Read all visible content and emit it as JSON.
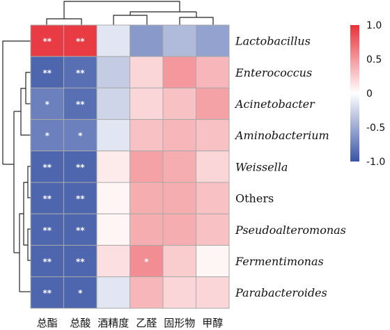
{
  "chart_data": {
    "type": "heatmap",
    "rows": [
      "Lactobacillus",
      "Enterococcus",
      "Acinetobacter",
      "Aminobacterium",
      "Weissella",
      "Others",
      "Pseudoalteromonas",
      "Fermentimonas",
      "Parabacteroides"
    ],
    "row_italic": [
      true,
      true,
      true,
      true,
      true,
      false,
      true,
      true,
      true
    ],
    "columns": [
      "总酯",
      "总酸",
      "酒精度",
      "乙醛",
      "固形物",
      "甲醇"
    ],
    "values": [
      [
        0.95,
        0.95,
        -0.15,
        -0.6,
        -0.4,
        -0.55
      ],
      [
        -0.9,
        -0.85,
        -0.3,
        0.2,
        0.5,
        0.35
      ],
      [
        -0.75,
        -0.85,
        -0.25,
        0.2,
        0.3,
        0.45
      ],
      [
        -0.75,
        -0.75,
        -0.15,
        0.3,
        0.35,
        0.3
      ],
      [
        -0.9,
        -0.9,
        0.1,
        0.45,
        0.4,
        0.2
      ],
      [
        -0.9,
        -0.9,
        0.05,
        0.4,
        0.4,
        0.3
      ],
      [
        -0.9,
        -0.9,
        0.05,
        0.4,
        0.4,
        0.3
      ],
      [
        -0.9,
        -0.9,
        0.15,
        0.55,
        0.25,
        0.05
      ],
      [
        -0.9,
        -0.9,
        -0.15,
        0.35,
        0.2,
        0.2
      ]
    ],
    "annotations": [
      [
        "**",
        "**",
        "",
        "",
        "",
        ""
      ],
      [
        "**",
        "**",
        "",
        "",
        "",
        ""
      ],
      [
        "*",
        "**",
        "",
        "",
        "",
        ""
      ],
      [
        "*",
        "*",
        "",
        "",
        "",
        ""
      ],
      [
        "**",
        "**",
        "",
        "",
        "",
        ""
      ],
      [
        "**",
        "**",
        "",
        "",
        "",
        ""
      ],
      [
        "**",
        "**",
        "",
        "",
        "",
        ""
      ],
      [
        "**",
        "**",
        "",
        "*",
        "",
        ""
      ],
      [
        "**",
        "*",
        "",
        "",
        "",
        ""
      ]
    ],
    "colorbar": {
      "range": [
        -1.0,
        1.0
      ],
      "ticks": [
        "1.0",
        "0.5",
        "0",
        "-0.5",
        "-1.0"
      ],
      "tick_values": [
        1.0,
        0.5,
        0,
        -0.5,
        -1.0
      ],
      "colors": {
        "low": "#3a55a5",
        "mid": "#ffffff",
        "high": "#e8313a"
      }
    },
    "column_dendrogram": true,
    "row_dendrogram": true,
    "grid_color": "#a9a9a9"
  }
}
